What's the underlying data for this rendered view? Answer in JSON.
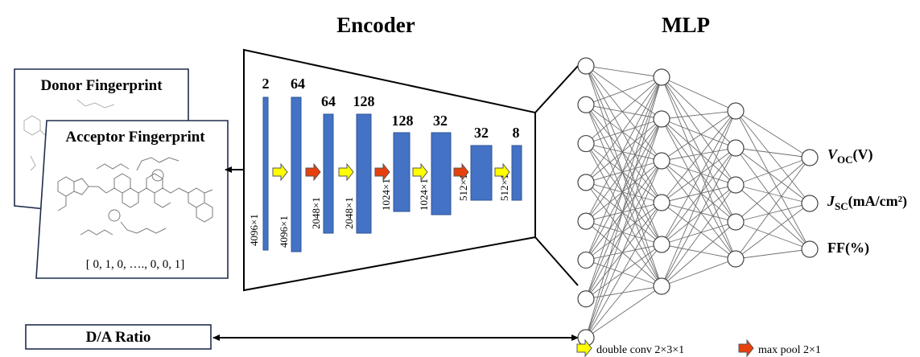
{
  "titles": {
    "encoder": "Encoder",
    "mlp": "MLP"
  },
  "inputs": {
    "donor": "Donor Fingerprint",
    "acceptor": "Acceptor Fingerprint",
    "vector": "[ 0, 1, 0, …., 0, 0, 1]",
    "ratio": "D/A Ratio"
  },
  "encoder": {
    "layers": [
      {
        "channels": "2",
        "size": "4096×1",
        "arrow": "double conv"
      },
      {
        "channels": "64",
        "size": "4096×1",
        "arrow": "max pool"
      },
      {
        "channels": "64",
        "size": "2048×1",
        "arrow": "double conv"
      },
      {
        "channels": "128",
        "size": "2048×1",
        "arrow": "max pool"
      },
      {
        "channels": "128",
        "size": "1024×1",
        "arrow": "double conv"
      },
      {
        "channels": "32",
        "size": "1024×1",
        "arrow": "max pool"
      },
      {
        "channels": "32",
        "size": "512×1",
        "arrow": "double conv"
      },
      {
        "channels": "8",
        "size": "512×1",
        "arrow": ""
      }
    ],
    "block_color": "#4472c4"
  },
  "mlp": {
    "layer_sizes": [
      8,
      6,
      5,
      3
    ],
    "outputs": [
      {
        "var": "V",
        "sub": "OC",
        "unit": "(V)"
      },
      {
        "var": "J",
        "sub": "SC",
        "unit": "(mA/cm²)"
      },
      {
        "var": "FF",
        "sub": "",
        "unit": "(%)"
      }
    ]
  },
  "legend": {
    "conv": "double conv 2×3×1",
    "pool": "max pool 2×1",
    "conv_color": "#ffff00",
    "pool_color": "#e8400c"
  }
}
